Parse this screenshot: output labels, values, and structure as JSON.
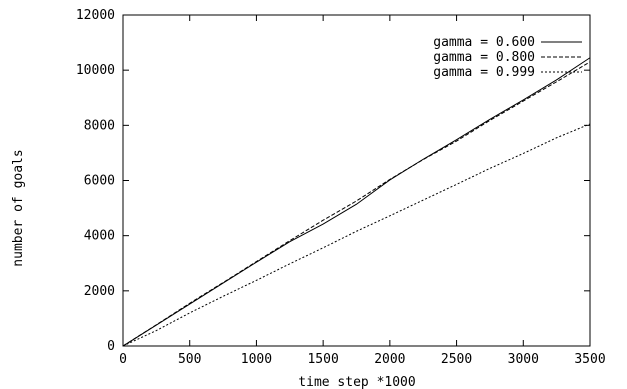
{
  "chart_data": {
    "type": "line",
    "title": "",
    "xlabel": "time step *1000",
    "ylabel": "number of goals",
    "xlim": [
      0,
      3500
    ],
    "ylim": [
      0,
      12000
    ],
    "xticks": [
      0,
      500,
      1000,
      1500,
      2000,
      2500,
      3000,
      3500
    ],
    "yticks": [
      0,
      2000,
      4000,
      6000,
      8000,
      10000,
      12000
    ],
    "grid": false,
    "legend_position": "top-right",
    "series": [
      {
        "name": "gamma = 0.600",
        "dash": "solid",
        "x": [
          0,
          250,
          500,
          750,
          1000,
          1250,
          1500,
          1750,
          2000,
          2250,
          2500,
          2750,
          3000,
          3250,
          3500
        ],
        "y": [
          0,
          760,
          1520,
          2280,
          3040,
          3780,
          4420,
          5140,
          6020,
          6770,
          7480,
          8220,
          8920,
          9650,
          10450
        ]
      },
      {
        "name": "gamma = 0.800",
        "dash": "dashed",
        "x": [
          0,
          250,
          500,
          750,
          1000,
          1250,
          1500,
          1750,
          2000,
          2250,
          2500,
          2750,
          3000,
          3250,
          3500
        ],
        "y": [
          0,
          770,
          1550,
          2300,
          3060,
          3820,
          4560,
          5260,
          6040,
          6760,
          7430,
          8180,
          8880,
          9580,
          10300
        ]
      },
      {
        "name": "gamma = 0.999",
        "dash": "dotted",
        "x": [
          0,
          250,
          500,
          750,
          1000,
          1250,
          1500,
          1750,
          2000,
          2250,
          2500,
          2750,
          3000,
          3250,
          3500
        ],
        "y": [
          0,
          560,
          1200,
          1800,
          2380,
          2980,
          3560,
          4160,
          4720,
          5290,
          5860,
          6440,
          6980,
          7550,
          8050
        ]
      }
    ]
  }
}
